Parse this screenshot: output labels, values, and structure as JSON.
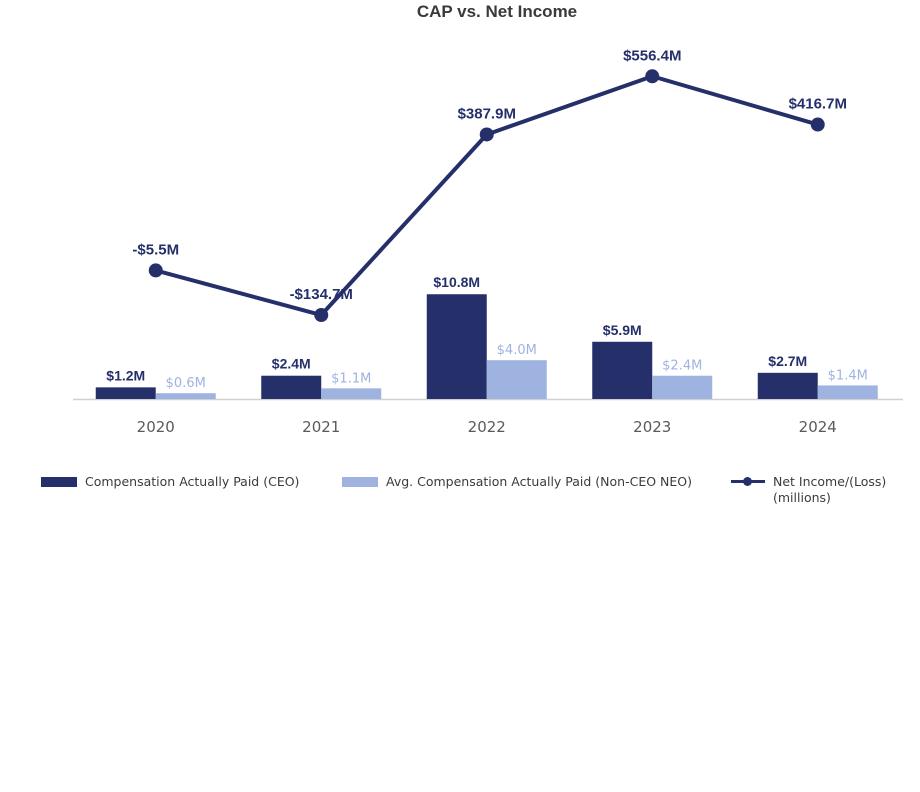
{
  "colors": {
    "ceo": "#25306b",
    "neo": "#9fb3e0",
    "net_income": "#25306b",
    "axis": "#d0d0d0",
    "tick_text": "#5a5a5a"
  },
  "legend": {
    "ceo": "Compensation Actually Paid (CEO)",
    "neo": "Avg. Compensation Actually Paid (Non-CEO NEO)",
    "net_income_line1": "Net Income/(Loss)",
    "net_income_line2": "(millions)"
  },
  "chart_data": {
    "type": "bar",
    "title": "CAP vs. Net Income",
    "categories": [
      "2020",
      "2021",
      "2022",
      "2023",
      "2024"
    ],
    "series": [
      {
        "name": "Compensation Actually Paid (CEO)",
        "type": "bar",
        "values": [
          1.2,
          2.4,
          10.8,
          5.9,
          2.7
        ],
        "labels": [
          "$1.2M",
          "$2.4M",
          "$10.8M",
          "$5.9M",
          "$2.7M"
        ]
      },
      {
        "name": "Avg. Compensation Actually Paid (Non-CEO NEO)",
        "type": "bar",
        "values": [
          0.6,
          1.1,
          4.0,
          2.4,
          1.4
        ],
        "labels": [
          "$0.6M",
          "$1.1M",
          "$4.0M",
          "$2.4M",
          "$1.4M"
        ]
      },
      {
        "name": "Net Income/(Loss) (millions)",
        "type": "line",
        "values": [
          -5.5,
          -134.7,
          387.9,
          556.4,
          416.7
        ],
        "labels": [
          "-$5.5M",
          "-$134.7M",
          "$387.9M",
          "$556.4M",
          "$416.7M"
        ]
      }
    ],
    "legend_position": "bottom",
    "grid": false
  }
}
